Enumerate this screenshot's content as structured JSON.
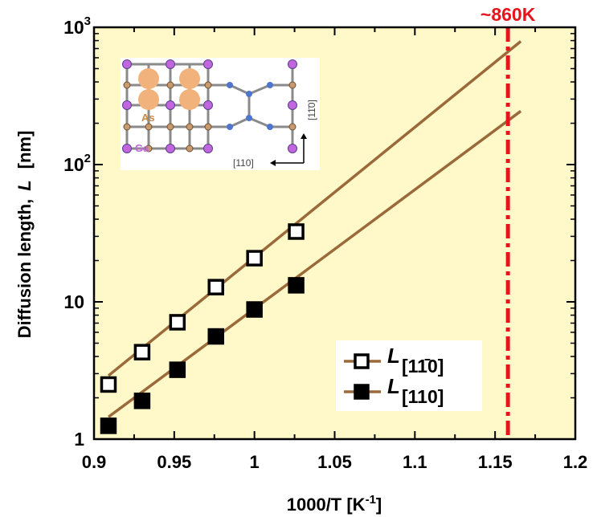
{
  "chart_data": {
    "type": "scatter",
    "xlabel_text": "1000/T  [K",
    "xlabel_sup": "-1",
    "xlabel_close": "]",
    "ylabel_prefix": "Diffusion length,",
    "ylabel_var": "L",
    "ylabel_unit": "[nm]",
    "xlim": [
      0.9,
      1.2
    ],
    "ylim": [
      1,
      1000
    ],
    "yscale": "log",
    "xticks": [
      0.9,
      0.95,
      1.0,
      1.05,
      1.1,
      1.15,
      1.2
    ],
    "xtick_labels": [
      "0.9",
      "0.95",
      "1",
      "1.05",
      "1.1",
      "1.15",
      "1.2"
    ],
    "ytick_labels": [
      {
        "value": 1,
        "base": "1",
        "exp": ""
      },
      {
        "value": 10,
        "base": "10",
        "exp": ""
      },
      {
        "value": 100,
        "base": "10",
        "exp": "2"
      },
      {
        "value": 1000,
        "base": "10",
        "exp": "3"
      }
    ],
    "background_color": "#fff8c8",
    "fit_line_color": "#9a6a3a",
    "vline": {
      "x": 1.158,
      "label": "~860K",
      "color": "#e8141c"
    },
    "legend_position": "lower-right",
    "series": [
      {
        "name": "[11̄0]",
        "marker": "open-square",
        "x": [
          0.909,
          0.93,
          0.952,
          0.976,
          1.0,
          1.026
        ],
        "y": [
          2.5,
          4.3,
          7.1,
          12.8,
          20.8,
          32.5
        ],
        "fit": {
          "x": [
            0.909,
            1.166
          ],
          "y": [
            2.9,
            790
          ]
        }
      },
      {
        "name": "[110]",
        "marker": "filled-square",
        "x": [
          0.909,
          0.93,
          0.952,
          0.976,
          1.0,
          1.026
        ],
        "y": [
          1.25,
          1.9,
          3.2,
          5.6,
          8.8,
          13.2
        ],
        "fit": {
          "x": [
            0.909,
            1.166
          ],
          "y": [
            1.45,
            245
          ]
        }
      }
    ],
    "legend_var": "L",
    "inset": {
      "labels": {
        "as": "As",
        "ga": "Ga",
        "dir_h": "[110]",
        "dir_v": "[11̄0]"
      },
      "colors": {
        "as_atom": "#f2b27c",
        "ga_atom": "#c266e0",
        "small_atom": "#c89a6e",
        "blue_atom": "#4f76cc",
        "bond": "#8a8a8a"
      }
    }
  }
}
